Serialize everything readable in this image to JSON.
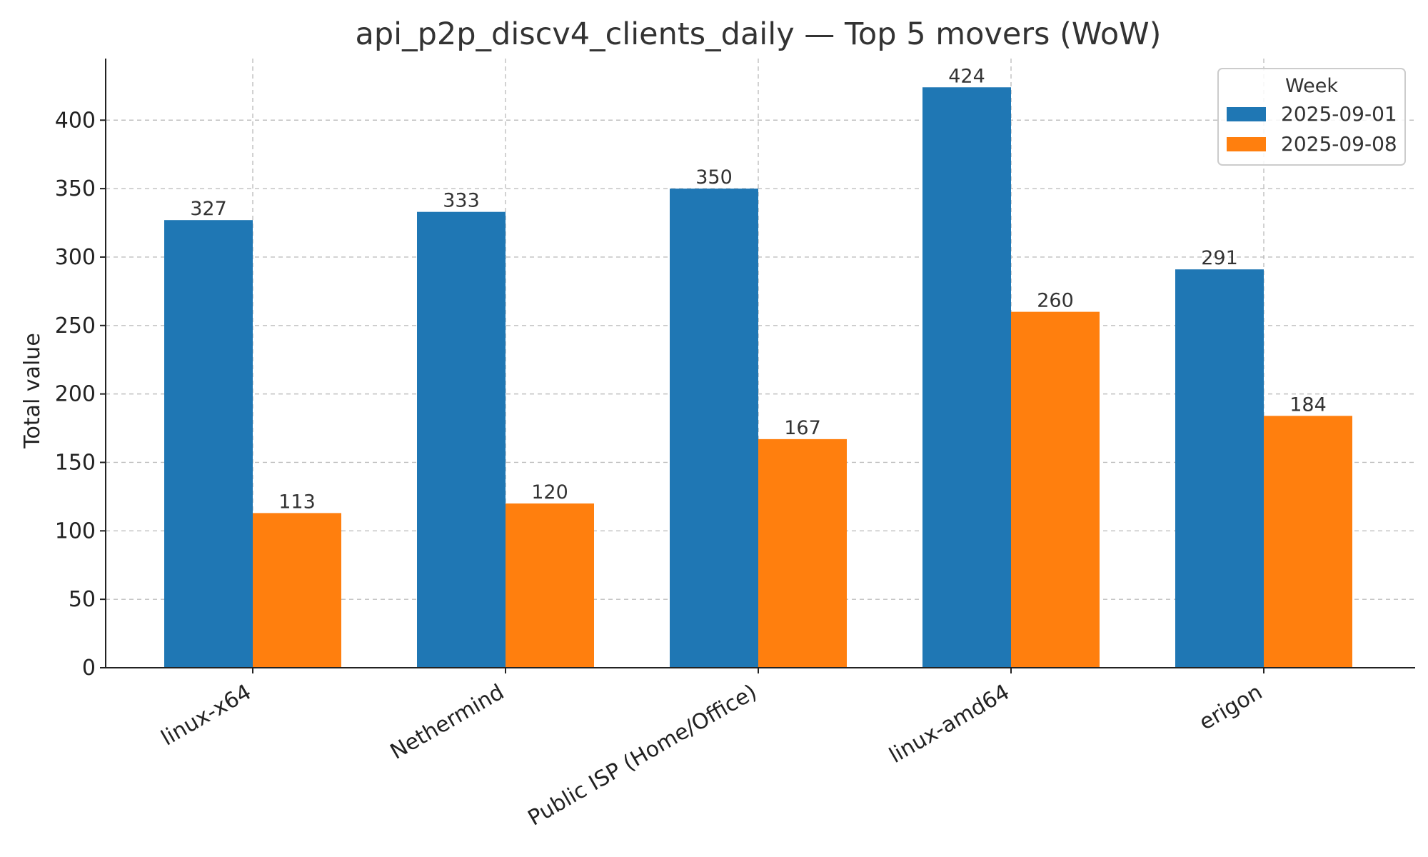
{
  "chart_data": {
    "type": "bar",
    "title": "api_p2p_discv4_clients_daily — Top 5 movers (WoW)",
    "xlabel": "",
    "ylabel": "Total value",
    "categories": [
      "linux-x64",
      "Nethermind",
      "Public ISP (Home/Office)",
      "linux-amd64",
      "erigon"
    ],
    "series": [
      {
        "name": "2025-09-01",
        "color": "#1f77b4",
        "values": [
          327,
          333,
          350,
          424,
          291
        ]
      },
      {
        "name": "2025-09-08",
        "color": "#ff7f0e",
        "values": [
          113,
          120,
          167,
          260,
          184
        ]
      }
    ],
    "ylim": [
      0,
      445
    ],
    "yticks": [
      0,
      50,
      100,
      150,
      200,
      250,
      300,
      350,
      400
    ],
    "grid": true,
    "legend": {
      "title": "Week",
      "placement": "top-right"
    }
  }
}
